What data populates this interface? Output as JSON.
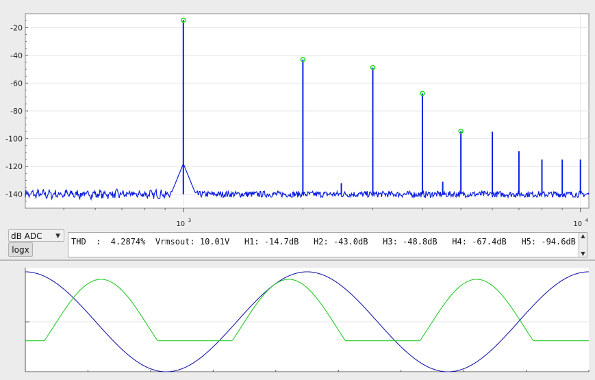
{
  "spectrum": {
    "y_ticks": [
      "-20",
      "-40",
      "-60",
      "-80",
      "-100",
      "-120",
      "-140"
    ],
    "x_ticks": [
      {
        "base": "10",
        "exp": "3"
      },
      {
        "base": "10",
        "exp": "4"
      }
    ]
  },
  "controls": {
    "scale_mode": "dB ADC",
    "logx_label": "logx",
    "readout": "THD  :  4.2874%  Vrmsout: 10.01V   H1: -14.7dB   H2: -43.0dB   H3: -48.8dB   H4: -67.4dB   H5: -94.6dB"
  },
  "colors": {
    "spectrum_trace": "#0b1ee0",
    "harmonic_marker": "#22dd22",
    "waveform_input": "#1a1aa8",
    "waveform_output": "#22cc22",
    "grid": "#e4e4e4"
  },
  "icons": {
    "dropdown": "chevron-down-icon",
    "scroll_up": "scroll-up-icon",
    "scroll_down": "scroll-down-icon"
  },
  "chart_data": [
    {
      "type": "line",
      "x_scale": "log",
      "xlim": [
        400,
        10500
      ],
      "ylim": [
        -150,
        -10
      ],
      "grid": true,
      "noise_floor": -140,
      "harmonics": [
        {
          "x": 1000,
          "y": -14.7
        },
        {
          "x": 2000,
          "y": -43.0
        },
        {
          "x": 3000,
          "y": -48.8
        },
        {
          "x": 4000,
          "y": -67.4
        },
        {
          "x": 5000,
          "y": -94.6
        }
      ],
      "other_peaks": [
        {
          "x": 2500,
          "y": -132
        },
        {
          "x": 4500,
          "y": -131
        },
        {
          "x": 6000,
          "y": -95
        },
        {
          "x": 7000,
          "y": -109
        },
        {
          "x": 8000,
          "y": -115
        },
        {
          "x": 9000,
          "y": -115
        },
        {
          "x": 10000,
          "y": -115
        }
      ]
    },
    {
      "type": "line",
      "series": [
        {
          "cycles": 2.0,
          "phase_deg": 90,
          "amplitude": 1.0,
          "offset": 0.0
        },
        {
          "cycles": 3.0,
          "shape": "clipped",
          "low": -0.35,
          "high": 0.88,
          "phase_deg": 55
        }
      ]
    }
  ]
}
